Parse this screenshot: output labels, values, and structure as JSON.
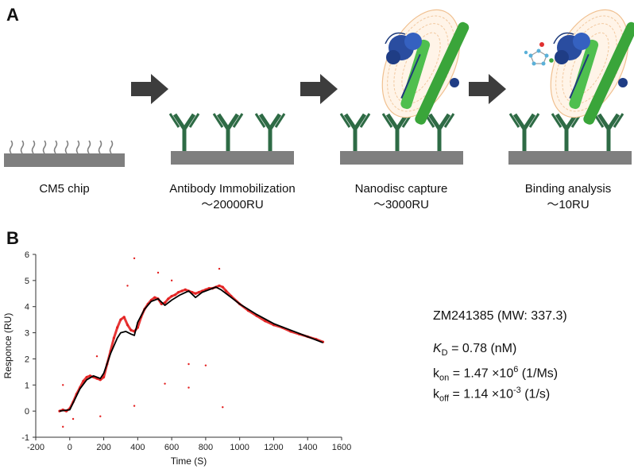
{
  "panel_a": {
    "letter": "A",
    "steps": [
      {
        "label": "CM5 chip",
        "sub": ""
      },
      {
        "label": "Antibody Immobilization",
        "sub": "～20000RU"
      },
      {
        "label": "Nanodisc capture",
        "sub": "～3000RU"
      },
      {
        "label": "Binding analysis",
        "sub": "～10RU"
      }
    ],
    "colors": {
      "antibody": "#2e6b45",
      "chip": "#7f7f7f",
      "arrow": "#3d3d3d",
      "nanodisc_lipid": "#f2c9a0",
      "msp_belt": "#3aa53a",
      "receptor": "#2a4da0"
    },
    "icons": [
      "arrow-right-icon",
      "antibody-icon",
      "nanodisc-icon",
      "ligand-molecule-icon"
    ]
  },
  "panel_b": {
    "letter": "B",
    "compound": "ZM241385 (MW: 337.3)",
    "kd": {
      "symbol": "K",
      "sub": "D",
      "value": " = 0.78 (nM)"
    },
    "kon": {
      "symbol": "k",
      "sub": "on",
      "value_pre": " = 1.47 ×10",
      "exp": "6",
      "unit": " (1/Ms)"
    },
    "koff": {
      "symbol": "k",
      "sub": "off",
      "value_pre": " = 1.14 ×10",
      "exp": "-3",
      "unit": " (1/s)"
    }
  },
  "chart_data": {
    "type": "line",
    "xlabel": "Time (S)",
    "ylabel": "Responce (RU)",
    "xlim": [
      -200,
      1600
    ],
    "ylim": [
      -1,
      6
    ],
    "xticks": [
      -200,
      0,
      200,
      400,
      600,
      800,
      1000,
      1200,
      1400,
      1600
    ],
    "yticks": [
      -1,
      0,
      1,
      2,
      3,
      4,
      5,
      6
    ],
    "grid": false,
    "series": [
      {
        "color": "#e32020",
        "style": "dots",
        "x": [
          -60,
          -40,
          -20,
          0,
          20,
          40,
          60,
          80,
          100,
          120,
          140,
          160,
          180,
          200,
          220,
          240,
          260,
          280,
          300,
          320,
          340,
          360,
          380,
          400,
          420,
          440,
          460,
          480,
          500,
          520,
          540,
          560,
          580,
          600,
          620,
          640,
          660,
          680,
          700,
          720,
          740,
          760,
          780,
          800,
          820,
          840,
          860,
          880,
          900,
          920,
          950,
          1000,
          1050,
          1100,
          1150,
          1200,
          1250,
          1300,
          1350,
          1400,
          1450,
          1490
        ],
        "y": [
          0.0,
          0.05,
          0.0,
          0.1,
          0.35,
          0.65,
          0.9,
          1.15,
          1.3,
          1.35,
          1.3,
          1.25,
          1.2,
          1.3,
          1.8,
          2.3,
          2.8,
          3.2,
          3.5,
          3.6,
          3.3,
          3.1,
          3.05,
          3.2,
          3.6,
          3.9,
          4.1,
          4.25,
          4.35,
          4.3,
          4.1,
          4.15,
          4.3,
          4.4,
          4.45,
          4.55,
          4.6,
          4.65,
          4.6,
          4.55,
          4.5,
          4.55,
          4.6,
          4.65,
          4.7,
          4.7,
          4.75,
          4.8,
          4.75,
          4.6,
          4.4,
          4.1,
          3.85,
          3.65,
          3.45,
          3.3,
          3.2,
          3.05,
          2.95,
          2.85,
          2.75,
          2.65
        ]
      },
      {
        "color": "#000000",
        "style": "line",
        "x": [
          -60,
          0,
          30,
          60,
          100,
          140,
          180,
          200,
          240,
          280,
          300,
          330,
          360,
          380,
          400,
          440,
          480,
          520,
          560,
          600,
          650,
          700,
          740,
          780,
          820,
          860,
          890,
          950,
          1000,
          1100,
          1200,
          1300,
          1400,
          1490
        ],
        "y": [
          0.0,
          0.05,
          0.45,
          0.85,
          1.2,
          1.35,
          1.25,
          1.45,
          2.2,
          2.8,
          3.0,
          3.05,
          2.95,
          2.9,
          3.4,
          3.9,
          4.2,
          4.3,
          4.05,
          4.25,
          4.45,
          4.6,
          4.35,
          4.55,
          4.65,
          4.75,
          4.65,
          4.35,
          4.1,
          3.7,
          3.35,
          3.1,
          2.85,
          2.62
        ]
      }
    ],
    "outliers": {
      "x": [
        -40,
        -40,
        20,
        160,
        180,
        340,
        380,
        380,
        520,
        560,
        600,
        700,
        700,
        800,
        880,
        900
      ],
      "y": [
        1.0,
        -0.6,
        -0.3,
        2.1,
        -0.2,
        4.8,
        5.85,
        0.2,
        5.3,
        1.05,
        5.0,
        0.9,
        1.8,
        1.75,
        5.45,
        0.15
      ]
    }
  }
}
